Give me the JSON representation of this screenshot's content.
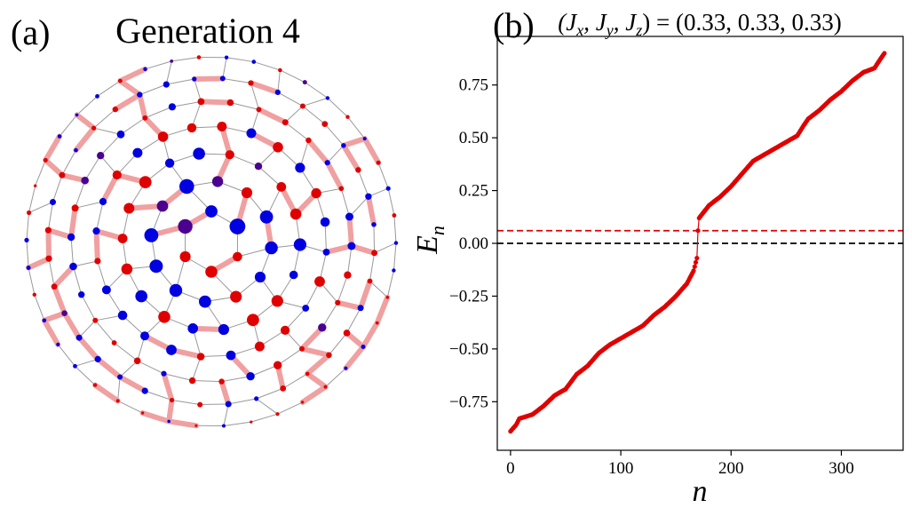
{
  "panel_a": {
    "label": "(a)",
    "title": "Generation 4"
  },
  "panel_b": {
    "label": "(b)",
    "title_prefix": "(J",
    "title_sub_x": "x",
    "title_sep1": ", J",
    "title_sub_y": "y",
    "title_sep2": ", J",
    "title_sub_z": "z",
    "title_suffix": ") = (0.33, 0.33, 0.33)"
  },
  "chart_data": {
    "type": "scatter",
    "xlabel": "n",
    "ylabel_main": "E",
    "ylabel_sub": "n",
    "xlim": [
      -12,
      356
    ],
    "ylim": [
      -0.98,
      0.98
    ],
    "xticks": [
      0,
      100,
      200,
      300
    ],
    "yticks": [
      -0.75,
      -0.5,
      -0.25,
      0.0,
      0.25,
      0.5,
      0.75
    ],
    "ytick_labels": [
      "−0.75",
      "−0.50",
      "−0.25",
      "0.00",
      "0.25",
      "0.50",
      "0.75"
    ],
    "n_points": 340,
    "series_color": "#e00000",
    "hlines": [
      {
        "y": 0.06,
        "color": "#e00000",
        "style": "dashed"
      },
      {
        "y": 0.0,
        "color": "#000000",
        "style": "dashed"
      }
    ],
    "curve_knots": [
      [
        0,
        -0.89
      ],
      [
        5,
        -0.86
      ],
      [
        8,
        -0.83
      ],
      [
        20,
        -0.81
      ],
      [
        30,
        -0.77
      ],
      [
        40,
        -0.72
      ],
      [
        50,
        -0.69
      ],
      [
        60,
        -0.62
      ],
      [
        70,
        -0.58
      ],
      [
        80,
        -0.52
      ],
      [
        90,
        -0.48
      ],
      [
        100,
        -0.45
      ],
      [
        110,
        -0.42
      ],
      [
        120,
        -0.39
      ],
      [
        130,
        -0.34
      ],
      [
        140,
        -0.3
      ],
      [
        150,
        -0.25
      ],
      [
        160,
        -0.19
      ],
      [
        166,
        -0.13
      ],
      [
        169,
        -0.07
      ],
      [
        170,
        0.06
      ],
      [
        171,
        0.12
      ],
      [
        180,
        0.18
      ],
      [
        190,
        0.22
      ],
      [
        200,
        0.27
      ],
      [
        210,
        0.33
      ],
      [
        220,
        0.39
      ],
      [
        230,
        0.42
      ],
      [
        240,
        0.45
      ],
      [
        250,
        0.48
      ],
      [
        260,
        0.51
      ],
      [
        266,
        0.56
      ],
      [
        270,
        0.59
      ],
      [
        280,
        0.63
      ],
      [
        290,
        0.68
      ],
      [
        300,
        0.72
      ],
      [
        310,
        0.77
      ],
      [
        320,
        0.81
      ],
      [
        330,
        0.83
      ],
      [
        335,
        0.87
      ],
      [
        339,
        0.9
      ]
    ]
  },
  "lattice_legend_colors": {
    "red_site": "#e00000",
    "blue_site": "#0000e0",
    "purple_site": "#4b0090",
    "bond": "#999999",
    "highlight_bond": "#f0a0a0"
  }
}
